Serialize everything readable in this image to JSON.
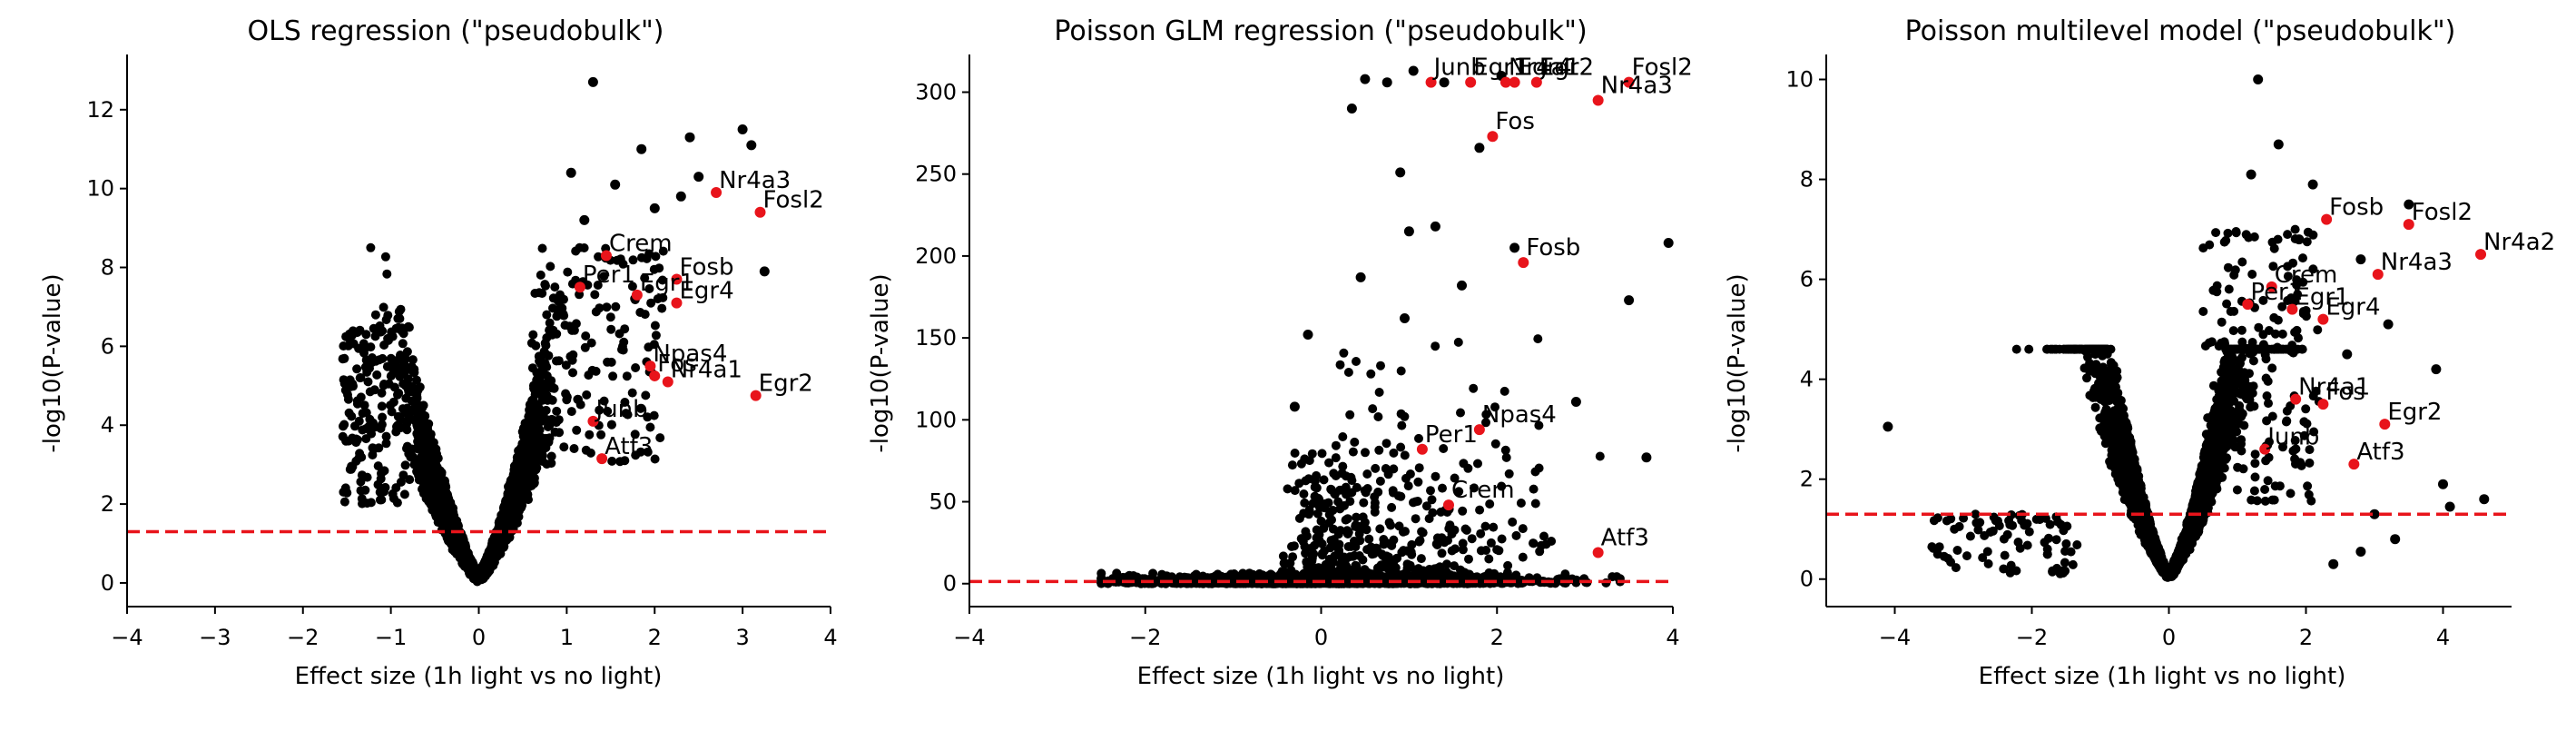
{
  "figure": {
    "colors": {
      "background": "#ffffff",
      "points": "#000000",
      "highlight": "#e8141b",
      "threshold": "#e8141b"
    }
  },
  "chart_data": [
    {
      "type": "scatter",
      "title": "OLS regression (\"pseudobulk\")",
      "xlabel": "Effect size (1h light vs no light)",
      "ylabel": "-log10(P-value)",
      "xlim": [
        -4,
        4
      ],
      "ylim": [
        -0.6,
        13.4
      ],
      "xticks": [
        -4,
        -3,
        -2,
        -1,
        0,
        1,
        2,
        3,
        4
      ],
      "xtick_labels": [
        "−4",
        "−3",
        "−2",
        "−1",
        "0",
        "1",
        "2",
        "3",
        "4"
      ],
      "yticks": [
        0,
        2,
        4,
        6,
        8,
        10,
        12
      ],
      "ytick_labels": [
        "0",
        "2",
        "4",
        "6",
        "8",
        "10",
        "12"
      ],
      "threshold": 1.3,
      "grid": false,
      "legend": "none",
      "highlighted_genes": [
        {
          "label": "Nr4a3",
          "x": 2.7,
          "y": 9.9
        },
        {
          "label": "Fosl2",
          "x": 3.2,
          "y": 9.4
        },
        {
          "label": "Crem",
          "x": 1.45,
          "y": 8.3
        },
        {
          "label": "Per1",
          "x": 1.15,
          "y": 7.5
        },
        {
          "label": "Fosb",
          "x": 2.25,
          "y": 7.7
        },
        {
          "label": "Egr1",
          "x": 1.8,
          "y": 7.3
        },
        {
          "label": "Egr4",
          "x": 2.25,
          "y": 7.1
        },
        {
          "label": "Npas4",
          "x": 1.95,
          "y": 5.5
        },
        {
          "label": "Fos",
          "x": 2.0,
          "y": 5.25
        },
        {
          "label": "Nr4a1",
          "x": 2.15,
          "y": 5.1
        },
        {
          "label": "Egr2",
          "x": 3.15,
          "y": 4.75
        },
        {
          "label": "Junb",
          "x": 1.3,
          "y": 4.1
        },
        {
          "label": "Atf3",
          "x": 1.4,
          "y": 3.15
        }
      ],
      "extra_points": [
        {
          "x": 1.3,
          "y": 12.7
        },
        {
          "x": 3.0,
          "y": 11.5
        },
        {
          "x": 2.4,
          "y": 11.3
        },
        {
          "x": 1.85,
          "y": 11.0
        },
        {
          "x": 3.1,
          "y": 11.1
        },
        {
          "x": 1.05,
          "y": 10.4
        },
        {
          "x": 1.55,
          "y": 10.1
        },
        {
          "x": 2.0,
          "y": 9.5
        },
        {
          "x": 2.3,
          "y": 9.8
        },
        {
          "x": 3.25,
          "y": 7.9
        },
        {
          "x": 2.5,
          "y": 10.3
        },
        {
          "x": 1.2,
          "y": 9.2
        }
      ]
    },
    {
      "type": "scatter",
      "title": "Poisson GLM regression (\"pseudobulk\")",
      "xlabel": "Effect size (1h light vs no light)",
      "ylabel": "-log10(P-value)",
      "xlim": [
        -4,
        4
      ],
      "ylim": [
        -14,
        323
      ],
      "xticks": [
        -4,
        -2,
        0,
        2,
        4
      ],
      "xtick_labels": [
        "−4",
        "−2",
        "0",
        "2",
        "4"
      ],
      "yticks": [
        0,
        50,
        100,
        150,
        200,
        250,
        300
      ],
      "ytick_labels": [
        "0",
        "50",
        "100",
        "150",
        "200",
        "250",
        "300"
      ],
      "threshold": 1.3,
      "grid": false,
      "legend": "none",
      "highlighted_genes": [
        {
          "label": "Junb",
          "x": 1.25,
          "y": 306
        },
        {
          "label": "Egr1",
          "x": 1.7,
          "y": 306
        },
        {
          "label": "Nr4a1",
          "x": 2.1,
          "y": 306
        },
        {
          "label": "Egr4",
          "x": 2.2,
          "y": 306
        },
        {
          "label": "Egr2",
          "x": 2.45,
          "y": 306
        },
        {
          "label": "Fosl2",
          "x": 3.5,
          "y": 306
        },
        {
          "label": "Nr4a3",
          "x": 3.15,
          "y": 295
        },
        {
          "label": "Fos",
          "x": 1.95,
          "y": 273
        },
        {
          "label": "Fosb",
          "x": 2.3,
          "y": 196
        },
        {
          "label": "Npas4",
          "x": 1.8,
          "y": 94
        },
        {
          "label": "Per1",
          "x": 1.15,
          "y": 82
        },
        {
          "label": "Crem",
          "x": 1.45,
          "y": 48
        },
        {
          "label": "Atf3",
          "x": 3.15,
          "y": 19
        }
      ],
      "extra_points": [
        {
          "x": 0.5,
          "y": 308
        },
        {
          "x": 0.75,
          "y": 306
        },
        {
          "x": 1.05,
          "y": 313
        },
        {
          "x": 0.35,
          "y": 290
        },
        {
          "x": 1.4,
          "y": 306
        },
        {
          "x": 1.8,
          "y": 266
        },
        {
          "x": 2.05,
          "y": 310
        },
        {
          "x": 3.95,
          "y": 208
        },
        {
          "x": 3.5,
          "y": 173
        },
        {
          "x": 3.7,
          "y": 77
        },
        {
          "x": 2.9,
          "y": 111
        },
        {
          "x": 0.45,
          "y": 187
        },
        {
          "x": 1.0,
          "y": 215
        },
        {
          "x": 1.3,
          "y": 218
        },
        {
          "x": 2.2,
          "y": 205
        },
        {
          "x": -0.15,
          "y": 152
        },
        {
          "x": -0.3,
          "y": 108
        },
        {
          "x": 0.95,
          "y": 162
        },
        {
          "x": 1.6,
          "y": 182
        },
        {
          "x": 0.9,
          "y": 251
        }
      ]
    },
    {
      "type": "scatter",
      "title": "Poisson multilevel model (\"pseudobulk\")",
      "xlabel": "Effect size (1h light vs no light)",
      "ylabel": "-log10(P-value)",
      "xlim": [
        -5,
        5
      ],
      "ylim": [
        -0.55,
        10.5
      ],
      "xticks": [
        -4,
        -2,
        0,
        2,
        4
      ],
      "xtick_labels": [
        "−4",
        "−2",
        "0",
        "2",
        "4"
      ],
      "yticks": [
        0,
        2,
        4,
        6,
        8,
        10
      ],
      "ytick_labels": [
        "0",
        "2",
        "4",
        "6",
        "8",
        "10"
      ],
      "threshold": 1.3,
      "grid": false,
      "legend": "none",
      "highlighted_genes": [
        {
          "label": "Nr4a2",
          "x": 4.55,
          "y": 6.5
        },
        {
          "label": "Fosb",
          "x": 2.3,
          "y": 7.2
        },
        {
          "label": "Fosl2",
          "x": 3.5,
          "y": 7.1
        },
        {
          "label": "Nr4a3",
          "x": 3.05,
          "y": 6.1
        },
        {
          "label": "Crem",
          "x": 1.5,
          "y": 5.85
        },
        {
          "label": "Per1",
          "x": 1.15,
          "y": 5.5
        },
        {
          "label": "Egr1",
          "x": 1.8,
          "y": 5.4
        },
        {
          "label": "Egr4",
          "x": 2.25,
          "y": 5.2
        },
        {
          "label": "Nr4a1",
          "x": 1.85,
          "y": 3.6
        },
        {
          "label": "Fos",
          "x": 2.25,
          "y": 3.5
        },
        {
          "label": "Egr2",
          "x": 3.15,
          "y": 3.1
        },
        {
          "label": "Junb",
          "x": 1.4,
          "y": 2.6
        },
        {
          "label": "Atf3",
          "x": 2.7,
          "y": 2.3
        }
      ],
      "extra_points": [
        {
          "x": 1.3,
          "y": 10.0
        },
        {
          "x": 1.6,
          "y": 8.7
        },
        {
          "x": 1.2,
          "y": 8.1
        },
        {
          "x": 3.5,
          "y": 7.5
        },
        {
          "x": 2.8,
          "y": 6.4
        },
        {
          "x": 3.9,
          "y": 4.2
        },
        {
          "x": 3.2,
          "y": 5.1
        },
        {
          "x": 4.6,
          "y": 1.6
        },
        {
          "x": 4.0,
          "y": 1.9
        },
        {
          "x": 4.1,
          "y": 1.45
        },
        {
          "x": -4.1,
          "y": 3.05
        },
        {
          "x": 2.1,
          "y": 7.9
        },
        {
          "x": 2.6,
          "y": 4.5
        },
        {
          "x": 1.9,
          "y": 6.8
        },
        {
          "x": 2.4,
          "y": 0.3
        },
        {
          "x": 2.8,
          "y": 0.55
        },
        {
          "x": 3.3,
          "y": 0.8
        },
        {
          "x": 3.0,
          "y": 1.3
        }
      ]
    }
  ]
}
